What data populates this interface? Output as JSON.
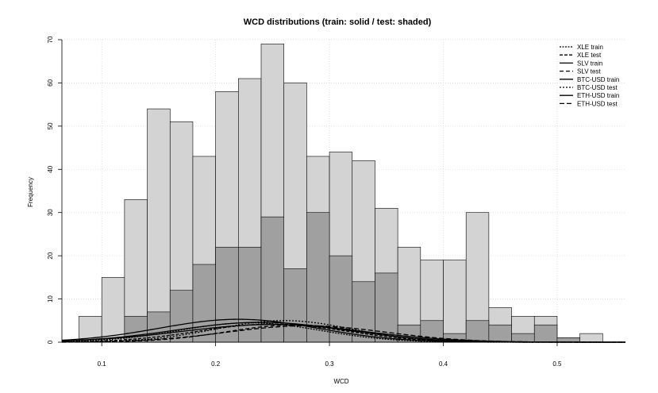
{
  "chart_data": {
    "type": "bar",
    "title": "WCD distributions (train: solid / test: shaded)",
    "xlabel": "WCD",
    "ylabel": "Frequency",
    "xlim": [
      0.065,
      0.56
    ],
    "ylim": [
      0,
      70
    ],
    "x_ticks": [
      0.1,
      0.2,
      0.3,
      0.4,
      0.5
    ],
    "y_ticks": [
      0,
      10,
      20,
      30,
      40,
      50,
      60,
      70
    ],
    "grid": true,
    "legend_position": "top-right",
    "bin_width": 0.02,
    "bin_starts": [
      0.08,
      0.1,
      0.12,
      0.14,
      0.16,
      0.18,
      0.2,
      0.22,
      0.24,
      0.26,
      0.28,
      0.3,
      0.32,
      0.34,
      0.36,
      0.38,
      0.4,
      0.42,
      0.44,
      0.46,
      0.48,
      0.5,
      0.52
    ],
    "series": [
      {
        "name": "train",
        "values": [
          6,
          15,
          33,
          54,
          51,
          43,
          58,
          61,
          69,
          60,
          43,
          44,
          42,
          31,
          22,
          19,
          19,
          30,
          8,
          6,
          6,
          1,
          2
        ]
      },
      {
        "name": "test",
        "values": [
          0,
          0,
          6,
          7,
          12,
          18,
          22,
          22,
          29,
          17,
          30,
          20,
          14,
          16,
          4,
          5,
          2,
          5,
          4,
          2,
          4,
          1,
          0
        ]
      }
    ],
    "density_curves": [
      {
        "label": "XLE train",
        "dash": "2,1.5",
        "peak_x": 0.23,
        "peak_y": 4.5,
        "sd": 0.062
      },
      {
        "label": "XLE test",
        "dash": "4,2",
        "peak_x": 0.25,
        "peak_y": 4.2,
        "sd": 0.065
      },
      {
        "label": "SLV train",
        "dash": "",
        "peak_x": 0.22,
        "peak_y": 5.3,
        "sd": 0.07
      },
      {
        "label": "SLV test",
        "dash": "5,3",
        "peak_x": 0.27,
        "peak_y": 4.0,
        "sd": 0.06
      },
      {
        "label": "BTC-USD train",
        "dash": "",
        "peak_x": 0.24,
        "peak_y": 4.6,
        "sd": 0.075
      },
      {
        "label": "BTC-USD test",
        "dash": "2,2",
        "peak_x": 0.26,
        "peak_y": 5.0,
        "sd": 0.06
      },
      {
        "label": "ETH-USD train",
        "dash": "",
        "peak_x": 0.25,
        "peak_y": 4.1,
        "sd": 0.08
      },
      {
        "label": "ETH-USD test",
        "dash": "6,3",
        "peak_x": 0.28,
        "peak_y": 3.8,
        "sd": 0.07
      }
    ],
    "colors": {
      "train": "#d3d3d3",
      "test": "#a0a0a0",
      "grid": "#d8d8d8"
    }
  }
}
